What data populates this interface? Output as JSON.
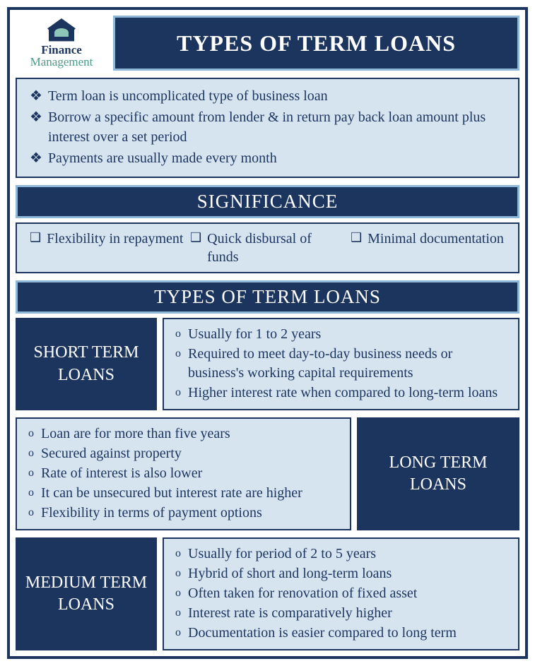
{
  "colors": {
    "primary_dark": "#1c355e",
    "panel_light": "#d6e4f0",
    "border_accent": "#8fb8d8",
    "logo_accent": "#4a9b87",
    "logo_shadow": "#8ec7b7",
    "white": "#ffffff"
  },
  "typography": {
    "title_fontsize": 32,
    "section_fontsize": 27,
    "body_fontsize": 20,
    "label_fontsize": 24
  },
  "logo": {
    "line1": "Finance",
    "line2": "Management"
  },
  "main_title": "TYPES OF TERM LOANS",
  "intro": {
    "items": [
      "Term loan is uncomplicated type of business loan",
      "Borrow a specific amount from lender & in return pay back loan amount plus interest over a set period",
      "Payments are usually made every month"
    ]
  },
  "significance": {
    "header": "SIGNIFICANCE",
    "items": [
      "Flexibility in repayment",
      "Quick disbursal of funds",
      "Minimal documentation"
    ]
  },
  "types_header": "TYPES OF TERM LOANS",
  "short_term": {
    "label": "SHORT TERM LOANS",
    "items": [
      "Usually for 1 to 2 years",
      "Required to meet day-to-day business needs or business's working capital requirements",
      "Higher interest rate when compared to long-term loans"
    ]
  },
  "long_term": {
    "label": "LONG TERM LOANS",
    "items": [
      "Loan are for more than five years",
      "Secured against property",
      "Rate of interest is also lower",
      "It can be unsecured but interest rate are higher",
      "Flexibility in terms of payment options"
    ]
  },
  "medium_term": {
    "label": "MEDIUM TERM LOANS",
    "items": [
      "Usually for period of 2 to 5 years",
      "Hybrid of short and long-term loans",
      "Often taken for renovation of fixed asset",
      "Interest rate is comparatively higher",
      "Documentation is easier compared to long term"
    ]
  },
  "bullets": {
    "fleuron": "❖",
    "square": "❑",
    "circle": "o"
  }
}
